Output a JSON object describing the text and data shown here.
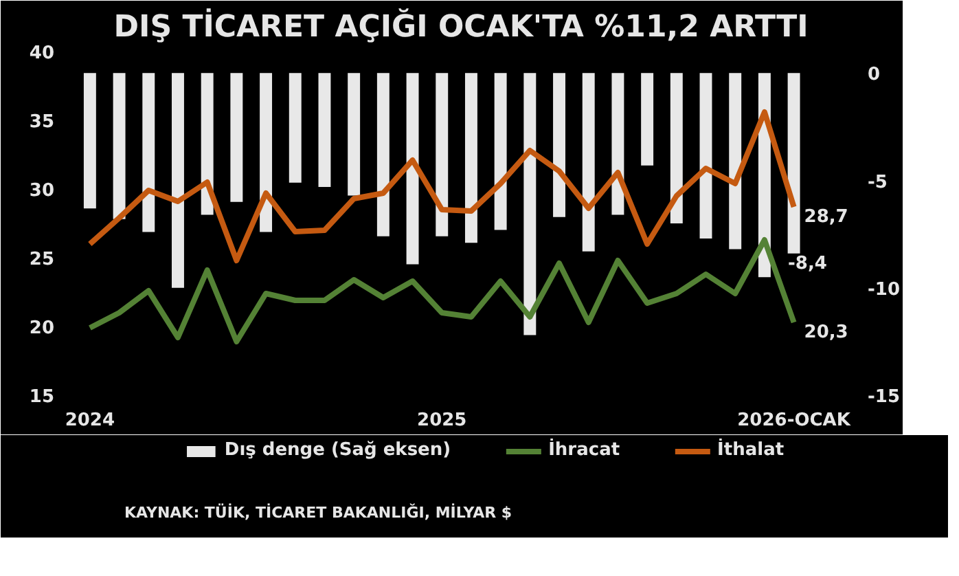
{
  "chart_data": {
    "type": "line",
    "title": "DIŞ TİCARET AÇIĞI OCAK'TA %11,2 ARTTI",
    "categories": [
      "2024",
      null,
      null,
      null,
      null,
      null,
      null,
      null,
      null,
      null,
      null,
      null,
      "2025",
      null,
      null,
      null,
      null,
      null,
      null,
      null,
      null,
      null,
      null,
      null,
      "2026-OCAK"
    ],
    "ylim": [
      15,
      40
    ],
    "yticks": [
      15,
      20,
      25,
      30,
      35,
      40
    ],
    "y2lim": [
      -15,
      1
    ],
    "y2ticks": [
      0,
      -5,
      -10,
      -15
    ],
    "grid": false,
    "legend": "bottom",
    "series": [
      {
        "name": "Dış denge (Sağ eksen)",
        "type": "bar",
        "axis": "y2",
        "color": "#e8e8e8",
        "values": [
          -6.3,
          -6.8,
          -7.4,
          -10.0,
          -6.6,
          -6.0,
          -7.4,
          -5.1,
          -5.3,
          -5.7,
          -7.6,
          -8.9,
          -7.6,
          -7.9,
          -7.3,
          -12.2,
          -6.7,
          -8.3,
          -6.6,
          -4.3,
          -7.0,
          -7.7,
          -8.2,
          -9.5,
          -8.4
        ],
        "value_labels": [
          null,
          null,
          null,
          null,
          null,
          null,
          null,
          null,
          null,
          null,
          null,
          null,
          null,
          null,
          null,
          null,
          null,
          null,
          null,
          null,
          null,
          null,
          null,
          null,
          "-8,4"
        ]
      },
      {
        "name": "İhracat",
        "color": "#548235",
        "values": [
          19.9,
          21.0,
          22.6,
          19.2,
          24.1,
          18.9,
          22.4,
          21.9,
          21.9,
          23.4,
          22.1,
          23.3,
          21.0,
          20.7,
          23.3,
          20.7,
          24.6,
          20.3,
          24.8,
          21.7,
          22.4,
          23.8,
          22.4,
          26.3,
          20.3
        ],
        "value_labels": [
          null,
          null,
          null,
          null,
          null,
          null,
          null,
          null,
          null,
          null,
          null,
          null,
          null,
          null,
          null,
          null,
          null,
          null,
          null,
          null,
          null,
          null,
          null,
          null,
          "20,3"
        ]
      },
      {
        "name": "İthalat",
        "color": "#c55a11",
        "values": [
          26.0,
          27.9,
          29.9,
          29.1,
          30.5,
          24.8,
          29.7,
          26.9,
          27.0,
          29.3,
          29.7,
          32.1,
          28.5,
          28.4,
          30.4,
          32.8,
          31.3,
          28.6,
          31.2,
          26.0,
          29.5,
          31.5,
          30.4,
          35.6,
          28.7
        ],
        "value_labels": [
          null,
          null,
          null,
          null,
          null,
          null,
          null,
          null,
          null,
          null,
          null,
          null,
          null,
          null,
          null,
          null,
          null,
          null,
          null,
          null,
          null,
          null,
          null,
          null,
          "28,7"
        ]
      }
    ],
    "annotations": [
      "KAYNAK: TÜİK, TİCARET BAKANLIĞI, MİLYAR $"
    ]
  }
}
